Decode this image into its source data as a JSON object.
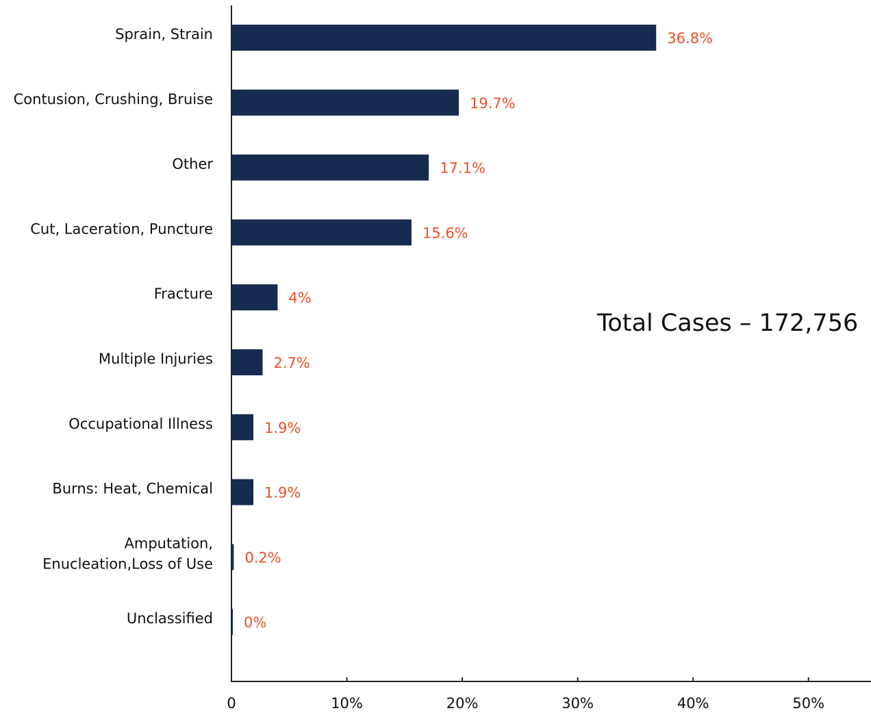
{
  "chart_data": {
    "type": "bar",
    "orientation": "horizontal",
    "annotation": "Total Cases – 172,756",
    "categories": [
      "Sprain, Strain",
      "Contusion, Crushing, Bruise",
      "Other",
      "Cut, Laceration, Puncture",
      "Fracture",
      "Multiple Injuries",
      "Occupational Illness",
      "Burns: Heat, Chemical",
      "Amputation,\nEnucleation,Loss of Use",
      "Unclassified"
    ],
    "values": [
      36.8,
      19.7,
      17.1,
      15.6,
      4,
      2.7,
      1.9,
      1.9,
      0.2,
      0
    ],
    "value_labels": [
      "36.8%",
      "19.7%",
      "17.1%",
      "15.6%",
      "4%",
      "2.7%",
      "1.9%",
      "1.9%",
      "0.2%",
      "0%"
    ],
    "color": "#172a4f",
    "label_color": "#e8522a",
    "xlim": [
      0,
      55
    ],
    "xticks": [
      0,
      {
        "value": 10,
        "label": "10%"
      },
      {
        "value": 20,
        "label": "20%"
      },
      {
        "value": 30,
        "label": "30%"
      },
      {
        "value": 40,
        "label": "40%"
      },
      {
        "value": 50,
        "label": "50%"
      }
    ],
    "grid": false
  }
}
